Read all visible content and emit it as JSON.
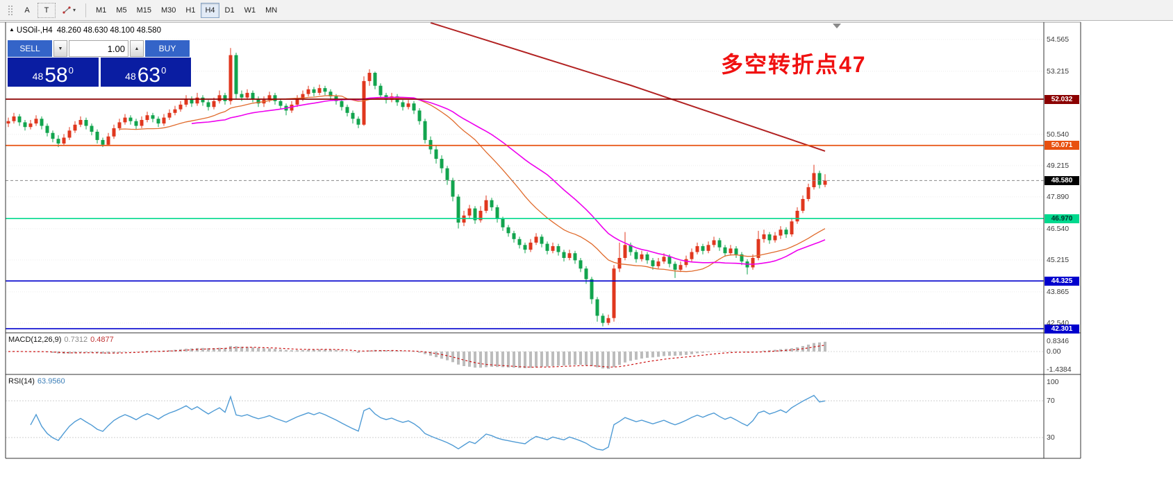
{
  "toolbar": {
    "tool_a": "A",
    "tool_t": "T",
    "timeframes": [
      "M1",
      "M5",
      "M15",
      "M30",
      "H1",
      "H4",
      "D1",
      "W1",
      "MN"
    ],
    "active_timeframe": "H4"
  },
  "chart": {
    "symbol_header": {
      "symbol": "USOil-,H4",
      "ohlc": "48.260 48.630 48.100 48.580"
    },
    "trade_panel": {
      "sell_label": "SELL",
      "buy_label": "BUY",
      "volume": "1.00",
      "sell_price": {
        "prefix": "48",
        "big": "58",
        "pips": "0"
      },
      "buy_price": {
        "prefix": "48",
        "big": "63",
        "pips": "0"
      }
    },
    "annotation": {
      "text": "多空转折点47",
      "color": "#f01010"
    },
    "macd": {
      "name": "MACD(12,26,9)",
      "value_main": "0.7312",
      "value_signal": "0.4877"
    },
    "rsi": {
      "name": "RSI(14)",
      "value": "63.9560"
    }
  },
  "chart_data": {
    "type": "candlestick",
    "symbol": "USOil-",
    "timeframe": "H4",
    "last_ohlc": {
      "open": 48.26,
      "high": 48.63,
      "low": 48.1,
      "close": 48.58
    },
    "colors": {
      "up": "#e0371e",
      "down": "#12a44e",
      "ma_fast": "#e06a2b",
      "ma_mid": "#ee00ee",
      "ma_long": "#b22222",
      "macd_hist": "#bcbcbc",
      "macd_signal": "#cc1111",
      "rsi": "#4f9bd5",
      "grid": "#ececec"
    },
    "candles": [
      [
        51.0,
        51.25,
        50.85,
        51.1
      ],
      [
        51.1,
        51.45,
        51.0,
        51.3
      ],
      [
        51.3,
        51.4,
        50.9,
        51.05
      ],
      [
        51.05,
        51.15,
        50.7,
        50.85
      ],
      [
        50.85,
        51.15,
        50.75,
        51.0
      ],
      [
        51.0,
        51.35,
        50.9,
        51.2
      ],
      [
        51.2,
        51.3,
        50.75,
        50.9
      ],
      [
        50.9,
        51.0,
        50.45,
        50.6
      ],
      [
        50.6,
        50.7,
        50.2,
        50.35
      ],
      [
        50.35,
        50.5,
        50.0,
        50.15
      ],
      [
        50.15,
        50.55,
        50.05,
        50.4
      ],
      [
        50.4,
        50.85,
        50.3,
        50.7
      ],
      [
        50.7,
        51.1,
        50.6,
        50.95
      ],
      [
        50.95,
        51.3,
        50.85,
        51.15
      ],
      [
        51.15,
        51.25,
        50.75,
        50.9
      ],
      [
        50.9,
        51.0,
        50.5,
        50.65
      ],
      [
        50.65,
        50.75,
        50.15,
        50.3
      ],
      [
        50.3,
        50.4,
        50.0,
        50.1
      ],
      [
        50.1,
        50.6,
        50.05,
        50.45
      ],
      [
        50.45,
        50.95,
        50.35,
        50.8
      ],
      [
        50.8,
        51.2,
        50.7,
        51.05
      ],
      [
        51.05,
        51.4,
        50.95,
        51.25
      ],
      [
        51.25,
        51.35,
        50.95,
        51.1
      ],
      [
        51.1,
        51.2,
        50.75,
        50.9
      ],
      [
        50.9,
        51.3,
        50.8,
        51.15
      ],
      [
        51.15,
        51.5,
        51.05,
        51.35
      ],
      [
        51.35,
        51.45,
        51.05,
        51.2
      ],
      [
        51.2,
        51.3,
        50.85,
        51.0
      ],
      [
        51.0,
        51.4,
        50.9,
        51.25
      ],
      [
        51.25,
        51.6,
        51.15,
        51.45
      ],
      [
        51.45,
        51.75,
        51.35,
        51.6
      ],
      [
        51.6,
        51.95,
        51.5,
        51.8
      ],
      [
        51.8,
        52.2,
        51.7,
        52.05
      ],
      [
        52.05,
        52.15,
        51.7,
        51.85
      ],
      [
        51.85,
        52.3,
        51.75,
        52.1
      ],
      [
        52.1,
        52.2,
        51.75,
        51.9
      ],
      [
        51.9,
        52.0,
        51.55,
        51.7
      ],
      [
        51.7,
        52.1,
        51.6,
        51.95
      ],
      [
        51.95,
        52.4,
        51.85,
        52.2
      ],
      [
        52.2,
        52.3,
        51.8,
        51.95
      ],
      [
        51.95,
        54.2,
        51.8,
        53.9
      ],
      [
        53.9,
        54.0,
        52.05,
        52.25
      ],
      [
        52.25,
        52.4,
        51.95,
        52.1
      ],
      [
        52.1,
        52.45,
        52.0,
        52.3
      ],
      [
        52.3,
        52.4,
        51.9,
        52.05
      ],
      [
        52.05,
        52.15,
        51.7,
        51.85
      ],
      [
        51.85,
        52.15,
        51.7,
        52.0
      ],
      [
        52.0,
        52.35,
        51.9,
        52.2
      ],
      [
        52.2,
        52.3,
        51.8,
        51.95
      ],
      [
        51.95,
        52.05,
        51.6,
        51.75
      ],
      [
        51.75,
        51.85,
        51.35,
        51.55
      ],
      [
        51.55,
        51.95,
        51.45,
        51.8
      ],
      [
        51.8,
        52.2,
        51.7,
        52.05
      ],
      [
        52.05,
        52.4,
        51.95,
        52.25
      ],
      [
        52.25,
        52.6,
        52.15,
        52.45
      ],
      [
        52.45,
        52.55,
        52.15,
        52.3
      ],
      [
        52.3,
        52.65,
        52.2,
        52.5
      ],
      [
        52.5,
        52.6,
        52.2,
        52.35
      ],
      [
        52.35,
        52.45,
        52.0,
        52.15
      ],
      [
        52.15,
        52.25,
        51.8,
        51.95
      ],
      [
        51.95,
        52.05,
        51.55,
        51.7
      ],
      [
        51.7,
        51.8,
        51.3,
        51.45
      ],
      [
        51.45,
        51.55,
        51.0,
        51.2
      ],
      [
        51.2,
        51.3,
        50.8,
        50.95
      ],
      [
        50.95,
        53.0,
        50.9,
        52.8
      ],
      [
        52.8,
        53.3,
        52.6,
        53.15
      ],
      [
        53.15,
        53.2,
        52.45,
        52.6
      ],
      [
        52.6,
        52.7,
        52.05,
        52.2
      ],
      [
        52.2,
        52.3,
        51.85,
        52.0
      ],
      [
        52.0,
        52.3,
        51.9,
        52.15
      ],
      [
        52.15,
        52.25,
        51.75,
        51.9
      ],
      [
        51.9,
        52.0,
        51.55,
        51.7
      ],
      [
        51.7,
        52.0,
        51.6,
        51.85
      ],
      [
        51.85,
        51.95,
        51.4,
        51.55
      ],
      [
        51.55,
        51.65,
        50.95,
        51.1
      ],
      [
        51.1,
        51.2,
        50.15,
        50.3
      ],
      [
        50.3,
        50.45,
        49.7,
        49.9
      ],
      [
        49.9,
        50.05,
        49.3,
        49.5
      ],
      [
        49.5,
        49.65,
        48.9,
        49.1
      ],
      [
        49.1,
        49.2,
        48.4,
        48.6
      ],
      [
        48.6,
        48.7,
        47.7,
        47.9
      ],
      [
        47.9,
        48.0,
        46.55,
        46.8
      ],
      [
        46.8,
        47.3,
        46.65,
        47.1
      ],
      [
        47.1,
        47.55,
        46.95,
        47.4
      ],
      [
        47.4,
        47.5,
        46.75,
        46.9
      ],
      [
        46.9,
        47.5,
        46.8,
        47.3
      ],
      [
        47.3,
        47.95,
        47.2,
        47.75
      ],
      [
        47.75,
        47.85,
        47.3,
        47.45
      ],
      [
        47.45,
        47.55,
        46.8,
        46.95
      ],
      [
        46.95,
        47.05,
        46.45,
        46.6
      ],
      [
        46.6,
        46.7,
        46.2,
        46.35
      ],
      [
        46.35,
        46.45,
        45.95,
        46.1
      ],
      [
        46.1,
        46.2,
        45.7,
        45.85
      ],
      [
        45.85,
        45.95,
        45.5,
        45.65
      ],
      [
        45.65,
        46.1,
        45.55,
        45.95
      ],
      [
        45.95,
        46.35,
        45.85,
        46.2
      ],
      [
        46.2,
        46.3,
        45.75,
        45.9
      ],
      [
        45.9,
        46.0,
        45.45,
        45.6
      ],
      [
        45.6,
        45.95,
        45.5,
        45.8
      ],
      [
        45.8,
        45.9,
        45.4,
        45.55
      ],
      [
        45.55,
        45.65,
        45.15,
        45.3
      ],
      [
        45.3,
        45.65,
        45.2,
        45.5
      ],
      [
        45.5,
        45.6,
        45.05,
        45.2
      ],
      [
        45.2,
        45.3,
        44.7,
        44.85
      ],
      [
        44.85,
        44.95,
        44.2,
        44.4
      ],
      [
        44.4,
        44.5,
        43.35,
        43.55
      ],
      [
        43.55,
        43.65,
        42.6,
        42.85
      ],
      [
        42.85,
        42.95,
        42.4,
        42.55
      ],
      [
        42.55,
        42.9,
        42.45,
        42.75
      ],
      [
        42.75,
        45.0,
        42.6,
        44.85
      ],
      [
        44.85,
        45.95,
        44.7,
        45.3
      ],
      [
        45.3,
        46.4,
        45.2,
        45.85
      ],
      [
        45.85,
        45.95,
        45.4,
        45.55
      ],
      [
        45.55,
        45.65,
        45.1,
        45.25
      ],
      [
        45.25,
        45.6,
        45.15,
        45.45
      ],
      [
        45.45,
        45.55,
        45.05,
        45.2
      ],
      [
        45.2,
        45.3,
        44.8,
        44.95
      ],
      [
        44.95,
        45.3,
        44.85,
        45.15
      ],
      [
        45.15,
        45.5,
        45.05,
        45.35
      ],
      [
        45.35,
        45.45,
        44.9,
        45.05
      ],
      [
        45.05,
        45.15,
        44.45,
        44.8
      ],
      [
        44.8,
        45.15,
        44.7,
        45.0
      ],
      [
        45.0,
        45.4,
        44.9,
        45.25
      ],
      [
        45.25,
        45.7,
        45.15,
        45.55
      ],
      [
        45.55,
        45.95,
        45.45,
        45.8
      ],
      [
        45.8,
        45.9,
        45.45,
        45.6
      ],
      [
        45.6,
        46.0,
        45.5,
        45.85
      ],
      [
        45.85,
        46.2,
        45.75,
        46.05
      ],
      [
        46.05,
        46.15,
        45.6,
        45.75
      ],
      [
        45.75,
        45.85,
        45.35,
        45.5
      ],
      [
        45.5,
        45.85,
        45.4,
        45.7
      ],
      [
        45.7,
        45.8,
        45.3,
        45.45
      ],
      [
        45.45,
        45.55,
        45.0,
        45.15
      ],
      [
        45.15,
        45.25,
        44.6,
        44.9
      ],
      [
        44.9,
        45.45,
        44.8,
        45.3
      ],
      [
        45.3,
        46.45,
        45.2,
        46.1
      ],
      [
        46.1,
        46.5,
        45.95,
        46.3
      ],
      [
        46.3,
        46.4,
        45.9,
        46.05
      ],
      [
        46.05,
        46.4,
        45.95,
        46.25
      ],
      [
        46.25,
        46.65,
        46.1,
        46.5
      ],
      [
        46.5,
        46.6,
        46.15,
        46.3
      ],
      [
        46.3,
        47.0,
        46.2,
        46.85
      ],
      [
        46.85,
        47.45,
        46.75,
        47.3
      ],
      [
        47.3,
        47.95,
        47.2,
        47.8
      ],
      [
        47.8,
        48.45,
        47.7,
        48.3
      ],
      [
        48.3,
        49.25,
        48.2,
        48.9
      ],
      [
        48.9,
        49.0,
        48.25,
        48.4
      ],
      [
        48.4,
        48.85,
        48.3,
        48.58
      ]
    ],
    "moving_averages": {
      "fast_period": 21,
      "mid_period": 34,
      "long_points": [
        {
          "i": 76,
          "price": 55.27
        },
        {
          "i": 112,
          "price": 52.62
        },
        {
          "i": 147,
          "price": 49.83
        }
      ]
    },
    "horizontal_lines": [
      {
        "price": 52.032,
        "label": "52.032",
        "color": "#8b0000",
        "text_color": "#ffffff"
      },
      {
        "price": 50.071,
        "label": "50.071",
        "color": "#e8500f",
        "text_color": "#ffffff"
      },
      {
        "price": 46.97,
        "label": "46.970",
        "color": "#00d98e",
        "text_color": "#00332a"
      },
      {
        "price": 44.325,
        "label": "44.325",
        "color": "#0000cd",
        "text_color": "#ffffff"
      },
      {
        "price": 42.301,
        "label": "42.301",
        "color": "#0000cd",
        "text_color": "#ffffff"
      }
    ],
    "current_price": {
      "price": 48.58,
      "label": "48.580",
      "bg": "#000000",
      "text_color": "#ffffff"
    },
    "price_axis_labels": [
      {
        "price": 54.565,
        "label": "54.565"
      },
      {
        "price": 53.215,
        "label": "53.215"
      },
      {
        "price": 50.54,
        "label": "50.540"
      },
      {
        "price": 49.215,
        "label": "49.215"
      },
      {
        "price": 47.89,
        "label": "47.890"
      },
      {
        "price": 46.54,
        "label": "46.540"
      },
      {
        "price": 45.215,
        "label": "45.215"
      },
      {
        "price": 43.865,
        "label": "43.865"
      },
      {
        "price": 42.54,
        "label": "42.540"
      }
    ],
    "macd_axis": [
      {
        "value": 0.8346,
        "label": "0.8346"
      },
      {
        "value": 0,
        "label": "0.00"
      },
      {
        "value": -1.4384,
        "label": "-1.4384"
      }
    ],
    "rsi_axis": [
      {
        "value": 100,
        "label": "100"
      },
      {
        "value": 70,
        "label": "70"
      },
      {
        "value": 30,
        "label": "30"
      }
    ]
  }
}
